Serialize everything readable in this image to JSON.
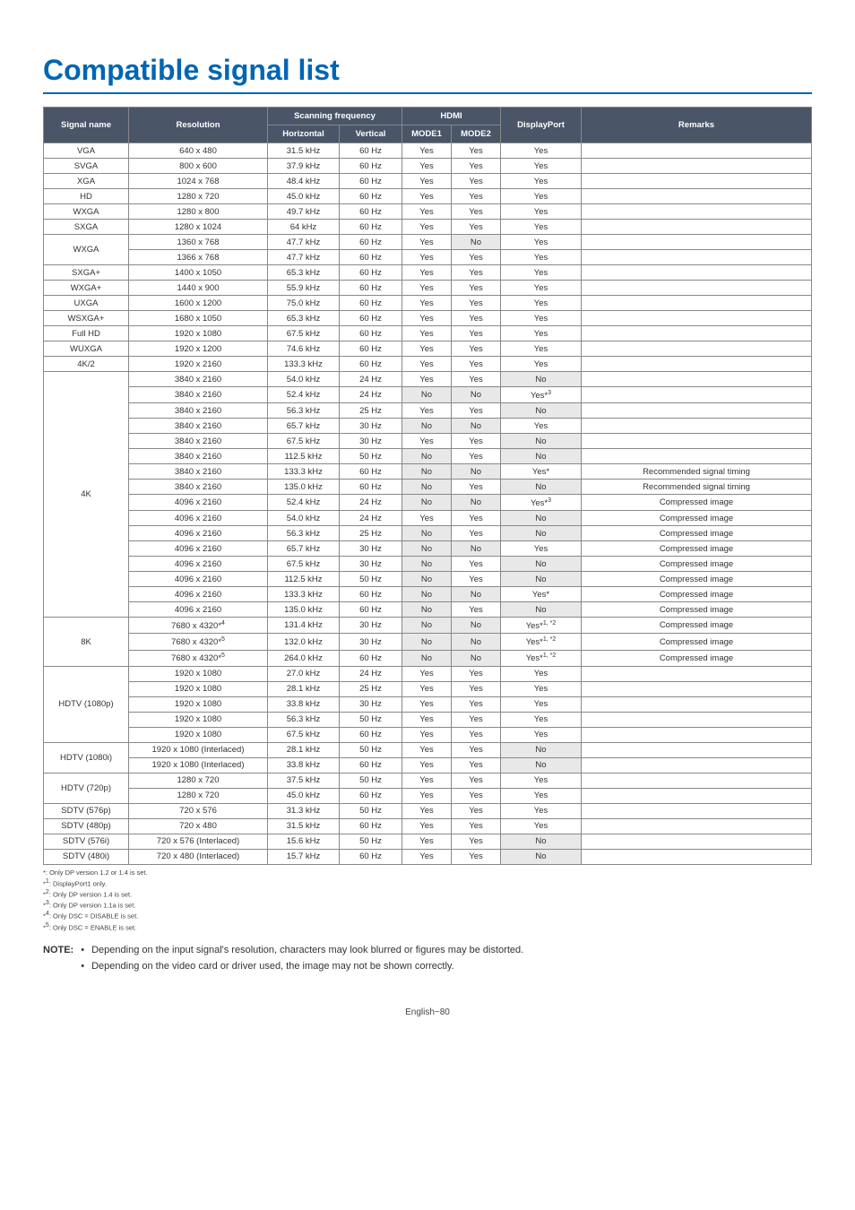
{
  "title": "Compatible signal list",
  "headers": {
    "signal_name": "Signal name",
    "resolution": "Resolution",
    "scanning_freq": "Scanning frequency",
    "horizontal": "Horizontal",
    "vertical": "Vertical",
    "hdmi": "HDMI",
    "mode1": "MODE1",
    "mode2": "MODE2",
    "displayport": "DisplayPort",
    "remarks": "Remarks"
  },
  "colors": {
    "header_bg": "#4a5568",
    "header_fg": "#ffffff",
    "alt_bg": "#e8e8e8",
    "border": "#888888",
    "title": "#0066b3"
  },
  "rows": [
    {
      "name": "VGA",
      "res": "640 x 480",
      "h": "31.5 kHz",
      "v": "60 Hz",
      "m1": "Yes",
      "m2": "Yes",
      "dp": "Yes",
      "rem": "",
      "span": 1
    },
    {
      "name": "SVGA",
      "res": "800 x 600",
      "h": "37.9 kHz",
      "v": "60 Hz",
      "m1": "Yes",
      "m2": "Yes",
      "dp": "Yes",
      "rem": "",
      "span": 1
    },
    {
      "name": "XGA",
      "res": "1024 x 768",
      "h": "48.4 kHz",
      "v": "60 Hz",
      "m1": "Yes",
      "m2": "Yes",
      "dp": "Yes",
      "rem": "",
      "span": 1
    },
    {
      "name": "HD",
      "res": "1280 x 720",
      "h": "45.0 kHz",
      "v": "60 Hz",
      "m1": "Yes",
      "m2": "Yes",
      "dp": "Yes",
      "rem": "",
      "span": 1
    },
    {
      "name": "WXGA",
      "res": "1280 x 800",
      "h": "49.7 kHz",
      "v": "60 Hz",
      "m1": "Yes",
      "m2": "Yes",
      "dp": "Yes",
      "rem": "",
      "span": 1
    },
    {
      "name": "SXGA",
      "res": "1280 x 1024",
      "h": "64 kHz",
      "v": "60 Hz",
      "m1": "Yes",
      "m2": "Yes",
      "dp": "Yes",
      "rem": "",
      "span": 1
    },
    {
      "name": "WXGA",
      "res": "1360 x 768",
      "h": "47.7 kHz",
      "v": "60 Hz",
      "m1": "Yes",
      "m2": "No",
      "dp": "Yes",
      "rem": "",
      "span": 2,
      "m2alt": true
    },
    {
      "name": "",
      "res": "1366 x 768",
      "h": "47.7 kHz",
      "v": "60 Hz",
      "m1": "Yes",
      "m2": "Yes",
      "dp": "Yes",
      "rem": "",
      "span": 0
    },
    {
      "name": "SXGA+",
      "res": "1400 x 1050",
      "h": "65.3 kHz",
      "v": "60 Hz",
      "m1": "Yes",
      "m2": "Yes",
      "dp": "Yes",
      "rem": "",
      "span": 1
    },
    {
      "name": "WXGA+",
      "res": "1440 x 900",
      "h": "55.9 kHz",
      "v": "60 Hz",
      "m1": "Yes",
      "m2": "Yes",
      "dp": "Yes",
      "rem": "",
      "span": 1
    },
    {
      "name": "UXGA",
      "res": "1600 x 1200",
      "h": "75.0 kHz",
      "v": "60 Hz",
      "m1": "Yes",
      "m2": "Yes",
      "dp": "Yes",
      "rem": "",
      "span": 1
    },
    {
      "name": "WSXGA+",
      "res": "1680 x 1050",
      "h": "65.3 kHz",
      "v": "60 Hz",
      "m1": "Yes",
      "m2": "Yes",
      "dp": "Yes",
      "rem": "",
      "span": 1
    },
    {
      "name": "Full HD",
      "res": "1920 x 1080",
      "h": "67.5 kHz",
      "v": "60 Hz",
      "m1": "Yes",
      "m2": "Yes",
      "dp": "Yes",
      "rem": "",
      "span": 1
    },
    {
      "name": "WUXGA",
      "res": "1920 x 1200",
      "h": "74.6 kHz",
      "v": "60 Hz",
      "m1": "Yes",
      "m2": "Yes",
      "dp": "Yes",
      "rem": "",
      "span": 1
    },
    {
      "name": "4K/2",
      "res": "1920 x 2160",
      "h": "133.3 kHz",
      "v": "60 Hz",
      "m1": "Yes",
      "m2": "Yes",
      "dp": "Yes",
      "rem": "",
      "span": 1
    },
    {
      "name": "4K",
      "res": "3840 x 2160",
      "h": "54.0 kHz",
      "v": "24 Hz",
      "m1": "Yes",
      "m2": "Yes",
      "dp": "No",
      "rem": "",
      "span": 16,
      "dpalt": true
    },
    {
      "name": "",
      "res": "3840 x 2160",
      "h": "52.4 kHz",
      "v": "24 Hz",
      "m1": "No",
      "m2": "No",
      "dp": "Yes*3",
      "rem": "",
      "span": 0,
      "m1alt": true,
      "m2alt": true,
      "dpsup": "3"
    },
    {
      "name": "",
      "res": "3840 x 2160",
      "h": "56.3 kHz",
      "v": "25 Hz",
      "m1": "Yes",
      "m2": "Yes",
      "dp": "No",
      "rem": "",
      "span": 0,
      "dpalt": true
    },
    {
      "name": "",
      "res": "3840 x 2160",
      "h": "65.7 kHz",
      "v": "30 Hz",
      "m1": "No",
      "m2": "No",
      "dp": "Yes",
      "rem": "",
      "span": 0,
      "m1alt": true,
      "m2alt": true
    },
    {
      "name": "",
      "res": "3840 x 2160",
      "h": "67.5 kHz",
      "v": "30 Hz",
      "m1": "Yes",
      "m2": "Yes",
      "dp": "No",
      "rem": "",
      "span": 0,
      "dpalt": true
    },
    {
      "name": "",
      "res": "3840 x 2160",
      "h": "112.5 kHz",
      "v": "50 Hz",
      "m1": "No",
      "m2": "Yes",
      "dp": "No",
      "rem": "",
      "span": 0,
      "m1alt": true,
      "dpalt": true
    },
    {
      "name": "",
      "res": "3840 x 2160",
      "h": "133.3 kHz",
      "v": "60 Hz",
      "m1": "No",
      "m2": "No",
      "dp": "Yes*",
      "rem": "Recommended signal timing",
      "span": 0,
      "m1alt": true,
      "m2alt": true
    },
    {
      "name": "",
      "res": "3840 x 2160",
      "h": "135.0 kHz",
      "v": "60 Hz",
      "m1": "No",
      "m2": "Yes",
      "dp": "No",
      "rem": "Recommended signal timing",
      "span": 0,
      "m1alt": true,
      "dpalt": true
    },
    {
      "name": "",
      "res": "4096 x 2160",
      "h": "52.4 kHz",
      "v": "24 Hz",
      "m1": "No",
      "m2": "No",
      "dp": "Yes*3",
      "rem": "Compressed image",
      "span": 0,
      "m1alt": true,
      "m2alt": true,
      "dpsup": "3"
    },
    {
      "name": "",
      "res": "4096 x 2160",
      "h": "54.0 kHz",
      "v": "24 Hz",
      "m1": "Yes",
      "m2": "Yes",
      "dp": "No",
      "rem": "Compressed image",
      "span": 0,
      "dpalt": true
    },
    {
      "name": "",
      "res": "4096 x 2160",
      "h": "56.3 kHz",
      "v": "25 Hz",
      "m1": "No",
      "m2": "Yes",
      "dp": "No",
      "rem": "Compressed image",
      "span": 0,
      "m1alt": true,
      "dpalt": true
    },
    {
      "name": "",
      "res": "4096 x 2160",
      "h": "65.7 kHz",
      "v": "30 Hz",
      "m1": "No",
      "m2": "No",
      "dp": "Yes",
      "rem": "Compressed image",
      "span": 0,
      "m1alt": true,
      "m2alt": true
    },
    {
      "name": "",
      "res": "4096 x 2160",
      "h": "67.5 kHz",
      "v": "30 Hz",
      "m1": "No",
      "m2": "Yes",
      "dp": "No",
      "rem": "Compressed image",
      "span": 0,
      "m1alt": true,
      "dpalt": true
    },
    {
      "name": "",
      "res": "4096 x 2160",
      "h": "112.5 kHz",
      "v": "50 Hz",
      "m1": "No",
      "m2": "Yes",
      "dp": "No",
      "rem": "Compressed image",
      "span": 0,
      "m1alt": true,
      "dpalt": true
    },
    {
      "name": "",
      "res": "4096 x 2160",
      "h": "133.3 kHz",
      "v": "60 Hz",
      "m1": "No",
      "m2": "No",
      "dp": "Yes*",
      "rem": "Compressed image",
      "span": 0,
      "m1alt": true,
      "m2alt": true
    },
    {
      "name": "",
      "res": "4096 x 2160",
      "h": "135.0 kHz",
      "v": "60 Hz",
      "m1": "No",
      "m2": "Yes",
      "dp": "No",
      "rem": "Compressed image",
      "span": 0,
      "m1alt": true,
      "dpalt": true
    },
    {
      "name": "8K",
      "res": "7680 x 4320*4",
      "h": "131.4 kHz",
      "v": "30 Hz",
      "m1": "No",
      "m2": "No",
      "dp": "Yes*1, *2",
      "rem": "Compressed image",
      "span": 3,
      "m1alt": true,
      "m2alt": true,
      "ressup": "4",
      "dpsup": "1, *2"
    },
    {
      "name": "",
      "res": "7680 x 4320*5",
      "h": "132.0 kHz",
      "v": "30 Hz",
      "m1": "No",
      "m2": "No",
      "dp": "Yes*1, *2",
      "rem": "Compressed image",
      "span": 0,
      "m1alt": true,
      "m2alt": true,
      "ressup": "5",
      "dpsup": "1, *2"
    },
    {
      "name": "",
      "res": "7680 x 4320*5",
      "h": "264.0 kHz",
      "v": "60 Hz",
      "m1": "No",
      "m2": "No",
      "dp": "Yes*1, *2",
      "rem": "Compressed image",
      "span": 0,
      "m1alt": true,
      "m2alt": true,
      "ressup": "5",
      "dpsup": "1, *2"
    },
    {
      "name": "HDTV (1080p)",
      "res": "1920 x 1080",
      "h": "27.0 kHz",
      "v": "24 Hz",
      "m1": "Yes",
      "m2": "Yes",
      "dp": "Yes",
      "rem": "",
      "span": 5
    },
    {
      "name": "",
      "res": "1920 x 1080",
      "h": "28.1 kHz",
      "v": "25 Hz",
      "m1": "Yes",
      "m2": "Yes",
      "dp": "Yes",
      "rem": "",
      "span": 0
    },
    {
      "name": "",
      "res": "1920 x 1080",
      "h": "33.8 kHz",
      "v": "30 Hz",
      "m1": "Yes",
      "m2": "Yes",
      "dp": "Yes",
      "rem": "",
      "span": 0
    },
    {
      "name": "",
      "res": "1920 x 1080",
      "h": "56.3 kHz",
      "v": "50 Hz",
      "m1": "Yes",
      "m2": "Yes",
      "dp": "Yes",
      "rem": "",
      "span": 0
    },
    {
      "name": "",
      "res": "1920 x 1080",
      "h": "67.5 kHz",
      "v": "60 Hz",
      "m1": "Yes",
      "m2": "Yes",
      "dp": "Yes",
      "rem": "",
      "span": 0
    },
    {
      "name": "HDTV (1080i)",
      "res": "1920 x 1080 (Interlaced)",
      "h": "28.1 kHz",
      "v": "50 Hz",
      "m1": "Yes",
      "m2": "Yes",
      "dp": "No",
      "rem": "",
      "span": 2,
      "dpalt": true
    },
    {
      "name": "",
      "res": "1920 x 1080 (Interlaced)",
      "h": "33.8 kHz",
      "v": "60 Hz",
      "m1": "Yes",
      "m2": "Yes",
      "dp": "No",
      "rem": "",
      "span": 0,
      "dpalt": true
    },
    {
      "name": "HDTV (720p)",
      "res": "1280 x 720",
      "h": "37.5 kHz",
      "v": "50 Hz",
      "m1": "Yes",
      "m2": "Yes",
      "dp": "Yes",
      "rem": "",
      "span": 2
    },
    {
      "name": "",
      "res": "1280 x 720",
      "h": "45.0 kHz",
      "v": "60 Hz",
      "m1": "Yes",
      "m2": "Yes",
      "dp": "Yes",
      "rem": "",
      "span": 0
    },
    {
      "name": "SDTV (576p)",
      "res": "720 x 576",
      "h": "31.3 kHz",
      "v": "50 Hz",
      "m1": "Yes",
      "m2": "Yes",
      "dp": "Yes",
      "rem": "",
      "span": 1
    },
    {
      "name": "SDTV (480p)",
      "res": "720 x 480",
      "h": "31.5 kHz",
      "v": "60 Hz",
      "m1": "Yes",
      "m2": "Yes",
      "dp": "Yes",
      "rem": "",
      "span": 1
    },
    {
      "name": "SDTV (576i)",
      "res": "720 x 576 (Interlaced)",
      "h": "15.6 kHz",
      "v": "50 Hz",
      "m1": "Yes",
      "m2": "Yes",
      "dp": "No",
      "rem": "",
      "span": 1,
      "dpalt": true
    },
    {
      "name": "SDTV (480i)",
      "res": "720 x 480 (Interlaced)",
      "h": "15.7 kHz",
      "v": "60 Hz",
      "m1": "Yes",
      "m2": "Yes",
      "dp": "No",
      "rem": "",
      "span": 1,
      "dpalt": true
    }
  ],
  "footnotes": [
    "*:   Only DP version 1.2 or 1.4 is set.",
    "*1:  DisplayPort1 only.",
    "*2:  Only DP version 1.4 is set.",
    "*3:  Only DP version 1.1a is set.",
    "*4:  Only DSC = DISABLE is set.",
    "*5:  Only DSC = ENABLE is set."
  ],
  "notes": {
    "label": "NOTE:",
    "items": [
      "Depending on the input signal's resolution, characters may look blurred or figures may be distorted.",
      "Depending on the video card or driver used, the image may not be shown correctly."
    ]
  },
  "pagenum": "English−80",
  "column_widths": [
    "95px",
    "155px",
    "80px",
    "70px",
    "55px",
    "55px",
    "90px",
    "auto"
  ]
}
